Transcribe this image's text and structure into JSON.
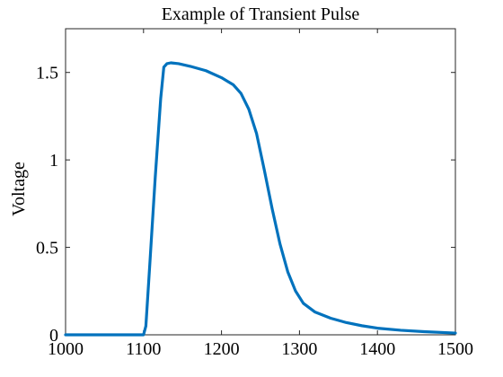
{
  "chart_data": {
    "type": "line",
    "title": "Example of Transient Pulse",
    "xlabel": "",
    "ylabel": "Voltage",
    "xlim": [
      1000,
      1500
    ],
    "ylim": [
      0,
      1.75
    ],
    "xticks": [
      1000,
      1100,
      1200,
      1300,
      1400,
      1500
    ],
    "yticks": [
      0,
      0.5,
      1,
      1.5
    ],
    "ytick_labels": [
      "0",
      "0.5",
      "1",
      "1.5"
    ],
    "grid": false,
    "line_color": "#0072BD",
    "series": [
      {
        "x": [
          1000,
          1050,
          1100,
          1103,
          1108,
          1115,
          1122,
          1126,
          1130,
          1135,
          1145,
          1160,
          1180,
          1200,
          1215,
          1225,
          1235,
          1245,
          1255,
          1265,
          1275,
          1285,
          1295,
          1305,
          1320,
          1340,
          1360,
          1380,
          1400,
          1430,
          1460,
          1500
        ],
        "y": [
          0,
          0,
          0,
          0.05,
          0.4,
          0.9,
          1.35,
          1.53,
          1.55,
          1.555,
          1.55,
          1.535,
          1.51,
          1.47,
          1.43,
          1.38,
          1.29,
          1.15,
          0.94,
          0.72,
          0.52,
          0.36,
          0.25,
          0.18,
          0.13,
          0.095,
          0.07,
          0.052,
          0.038,
          0.026,
          0.018,
          0.01
        ]
      }
    ]
  }
}
